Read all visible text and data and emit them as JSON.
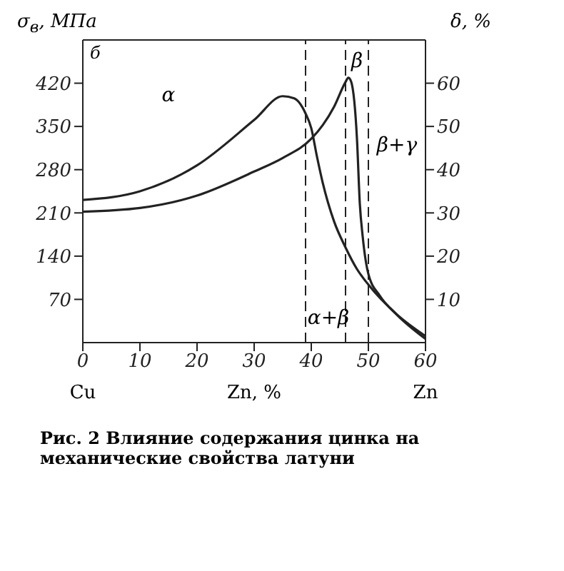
{
  "chart_data": {
    "type": "line",
    "xlabel": "Zn, %",
    "ylabel": "σ$_{в}$, МПа",
    "y2label": "δ, %",
    "xlim": [
      0,
      60
    ],
    "xticks": [
      0,
      10,
      20,
      30,
      40,
      50,
      60
    ],
    "ylim": [
      0,
      490
    ],
    "yticks": [
      70,
      140,
      210,
      280,
      350,
      420
    ],
    "y2lim": [
      0,
      70
    ],
    "y2ticks": [
      10,
      20,
      30,
      40,
      50,
      60
    ],
    "grid": false,
    "legend": false,
    "marker": "none",
    "line_style": "solid",
    "series": [
      {
        "color": "#222222",
        "axis": "y",
        "x": [
          0,
          10,
          20,
          30,
          35,
          40,
          42,
          44,
          46,
          46.5,
          47,
          48,
          48.5,
          49,
          50,
          52,
          55,
          60
        ],
        "values": [
          212,
          218,
          238,
          277,
          299,
          330,
          352,
          382,
          422,
          429,
          422,
          330,
          225,
          172,
          111,
          76,
          45,
          6
        ]
      },
      {
        "color": "#222222",
        "axis": "y2",
        "x": [
          0,
          10,
          20,
          30,
          35,
          37,
          39,
          40,
          41,
          42,
          44,
          46,
          48,
          50,
          55,
          60
        ],
        "values": [
          33,
          35,
          41,
          51.5,
          57,
          56.5,
          53,
          49.6,
          43,
          37,
          28,
          22,
          17,
          13.4,
          6.5,
          1.5
        ]
      }
    ],
    "ref_lines": [
      {
        "axis": "x",
        "value": 39,
        "line_style": "dashed",
        "color": "#222222"
      },
      {
        "axis": "x",
        "value": 46,
        "line_style": "dashed",
        "color": "#222222"
      },
      {
        "axis": "x",
        "value": 50,
        "line_style": "dashed",
        "color": "#222222"
      }
    ],
    "annotations": [
      "б",
      "α",
      "β",
      "β+γ",
      "α+β",
      "Cu",
      "Zn",
      "Рис. 2 Влияние содержания цинка на механические свойства латуни"
    ]
  }
}
